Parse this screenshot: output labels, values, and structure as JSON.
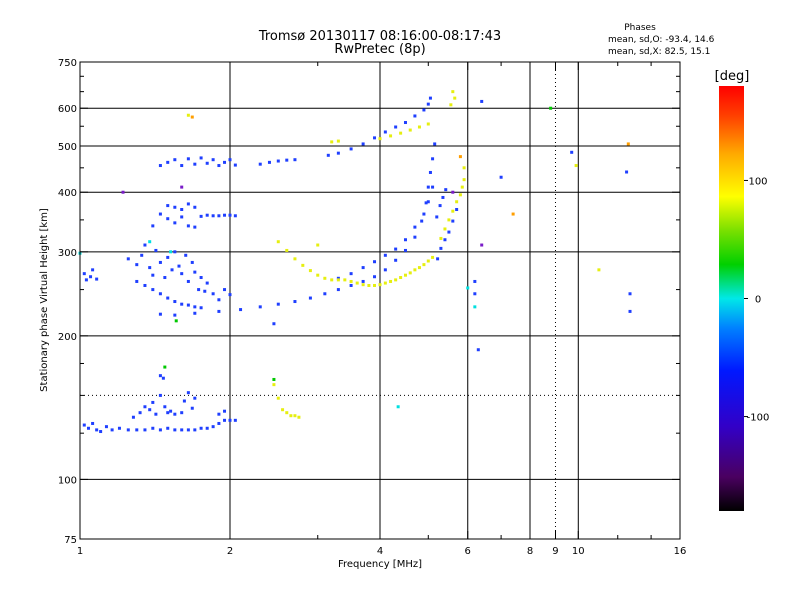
{
  "title": "Tromsø 20130117 08:16:00-08:17:43",
  "subtitle": "RwPretec (8p)",
  "stats": {
    "heading": "Phases",
    "line1": "mean, sd,O: -93.4, 14.6",
    "line2": "mean, sd,X: 82.5, 15.1"
  },
  "colors": {
    "blue": "#1f3fff",
    "yellow": "#e6ef10",
    "cyan": "#00e0e0",
    "green": "#00c800",
    "orange": "#ff9e00",
    "purple": "#7a1cc8"
  },
  "chart_data": {
    "type": "scatter",
    "xlabel": "Frequency [MHz]",
    "ylabel": "Stationary phase Virtual Height [km]",
    "x_scale": "log",
    "y_scale": "log",
    "xlim": [
      1,
      16
    ],
    "ylim": [
      75,
      750
    ],
    "x_ticks": [
      1,
      2,
      4,
      6,
      8,
      9,
      10,
      16
    ],
    "x_tick_labels": [
      "1",
      "2",
      "4",
      "6",
      "8",
      "9",
      "10",
      "16"
    ],
    "x_minor_ticks": [
      3,
      5,
      7,
      12,
      14
    ],
    "x_grid": [
      2,
      4,
      6,
      8,
      10
    ],
    "x_grid_dotted": [
      9
    ],
    "y_ticks": [
      75,
      100,
      200,
      300,
      400,
      500,
      600,
      750
    ],
    "y_tick_labels": [
      "75",
      "100",
      "200",
      "300",
      "400",
      "500",
      "600",
      "750"
    ],
    "y_minor_ticks": [
      125,
      150,
      175,
      250,
      350,
      450,
      550,
      650,
      700
    ],
    "y_grid": [
      100,
      200,
      300,
      400,
      500,
      600
    ],
    "y_grid_dotted": [
      150
    ],
    "grid": true,
    "colorbar": {
      "label": "[deg]",
      "min": -180,
      "max": 180,
      "ticks": [
        100,
        0,
        -100
      ],
      "tick_labels": [
        "100",
        "0",
        "-100"
      ]
    },
    "series": [
      {
        "color": "blue",
        "points": [
          [
            1.02,
            130
          ],
          [
            1.04,
            128
          ],
          [
            1.06,
            131
          ],
          [
            1.08,
            127
          ],
          [
            1.1,
            126
          ],
          [
            1.13,
            129
          ],
          [
            1.16,
            127
          ],
          [
            1.2,
            128
          ],
          [
            1.25,
            127
          ],
          [
            1.3,
            127
          ],
          [
            1.35,
            127
          ],
          [
            1.4,
            128
          ],
          [
            1.45,
            127
          ],
          [
            1.5,
            128
          ],
          [
            1.55,
            127
          ],
          [
            1.6,
            127
          ],
          [
            1.65,
            127
          ],
          [
            1.7,
            127
          ],
          [
            1.75,
            128
          ],
          [
            1.8,
            128
          ],
          [
            1.85,
            129
          ],
          [
            1.9,
            131
          ],
          [
            1.95,
            133
          ],
          [
            2.0,
            133
          ],
          [
            2.05,
            133
          ],
          [
            1.28,
            135
          ],
          [
            1.32,
            138
          ],
          [
            1.35,
            142
          ],
          [
            1.38,
            140
          ],
          [
            1.4,
            145
          ],
          [
            1.42,
            137
          ],
          [
            1.45,
            150
          ],
          [
            1.48,
            142
          ],
          [
            1.5,
            138
          ],
          [
            1.52,
            139
          ],
          [
            1.55,
            137
          ],
          [
            1.6,
            138
          ],
          [
            1.62,
            146
          ],
          [
            1.65,
            152
          ],
          [
            1.68,
            141
          ],
          [
            1.7,
            148
          ],
          [
            1.45,
            165
          ],
          [
            1.47,
            163
          ],
          [
            1.9,
            137
          ],
          [
            1.95,
            139
          ],
          [
            1.03,
            262
          ],
          [
            1.05,
            266
          ],
          [
            1.08,
            263
          ],
          [
            1.02,
            270
          ],
          [
            1.06,
            275
          ],
          [
            1.25,
            290
          ],
          [
            1.3,
            282
          ],
          [
            1.33,
            295
          ],
          [
            1.35,
            310
          ],
          [
            1.38,
            278
          ],
          [
            1.4,
            268
          ],
          [
            1.42,
            302
          ],
          [
            1.45,
            285
          ],
          [
            1.48,
            265
          ],
          [
            1.5,
            292
          ],
          [
            1.53,
            275
          ],
          [
            1.55,
            300
          ],
          [
            1.58,
            280
          ],
          [
            1.6,
            270
          ],
          [
            1.63,
            295
          ],
          [
            1.65,
            260
          ],
          [
            1.68,
            285
          ],
          [
            1.7,
            272
          ],
          [
            1.73,
            250
          ],
          [
            1.75,
            265
          ],
          [
            1.78,
            248
          ],
          [
            1.8,
            258
          ],
          [
            1.85,
            245
          ],
          [
            1.9,
            238
          ],
          [
            1.95,
            250
          ],
          [
            2.0,
            244
          ],
          [
            1.3,
            260
          ],
          [
            1.35,
            255
          ],
          [
            1.4,
            250
          ],
          [
            1.45,
            245
          ],
          [
            1.5,
            240
          ],
          [
            1.55,
            236
          ],
          [
            1.6,
            233
          ],
          [
            1.65,
            232
          ],
          [
            1.7,
            230
          ],
          [
            1.75,
            229
          ],
          [
            1.4,
            340
          ],
          [
            1.45,
            360
          ],
          [
            1.5,
            352
          ],
          [
            1.55,
            345
          ],
          [
            1.6,
            355
          ],
          [
            1.65,
            340
          ],
          [
            1.7,
            338
          ],
          [
            1.75,
            356
          ],
          [
            1.8,
            358
          ],
          [
            1.85,
            357
          ],
          [
            1.9,
            357
          ],
          [
            1.95,
            358
          ],
          [
            2.0,
            358
          ],
          [
            2.05,
            357
          ],
          [
            1.5,
            375
          ],
          [
            1.55,
            372
          ],
          [
            1.6,
            368
          ],
          [
            1.65,
            378
          ],
          [
            1.7,
            372
          ],
          [
            1.45,
            455
          ],
          [
            1.5,
            462
          ],
          [
            1.55,
            468
          ],
          [
            1.6,
            455
          ],
          [
            1.65,
            470
          ],
          [
            1.7,
            458
          ],
          [
            1.75,
            472
          ],
          [
            1.8,
            460
          ],
          [
            1.85,
            468
          ],
          [
            1.9,
            455
          ],
          [
            1.95,
            462
          ],
          [
            2.0,
            468
          ],
          [
            2.05,
            456
          ],
          [
            2.3,
            458
          ],
          [
            2.4,
            462
          ],
          [
            2.5,
            465
          ],
          [
            2.6,
            467
          ],
          [
            2.7,
            468
          ],
          [
            3.15,
            478
          ],
          [
            3.3,
            483
          ],
          [
            3.5,
            493
          ],
          [
            3.7,
            505
          ],
          [
            3.9,
            520
          ],
          [
            4.1,
            535
          ],
          [
            4.3,
            548
          ],
          [
            4.5,
            560
          ],
          [
            4.7,
            578
          ],
          [
            4.9,
            595
          ],
          [
            5.0,
            612
          ],
          [
            5.05,
            630
          ],
          [
            1.45,
            222
          ],
          [
            1.55,
            221
          ],
          [
            1.7,
            223
          ],
          [
            1.9,
            225
          ],
          [
            2.1,
            227
          ],
          [
            2.3,
            230
          ],
          [
            2.5,
            233
          ],
          [
            2.7,
            236
          ],
          [
            2.9,
            240
          ],
          [
            3.1,
            245
          ],
          [
            3.3,
            250
          ],
          [
            3.5,
            255
          ],
          [
            3.7,
            260
          ],
          [
            3.9,
            266
          ],
          [
            4.1,
            275
          ],
          [
            4.3,
            288
          ],
          [
            4.5,
            302
          ],
          [
            4.7,
            322
          ],
          [
            4.85,
            348
          ],
          [
            4.95,
            380
          ],
          [
            5.0,
            410
          ],
          [
            5.05,
            440
          ],
          [
            5.1,
            470
          ],
          [
            5.15,
            505
          ],
          [
            3.3,
            264
          ],
          [
            3.5,
            270
          ],
          [
            3.7,
            278
          ],
          [
            3.9,
            286
          ],
          [
            4.1,
            295
          ],
          [
            4.3,
            304
          ],
          [
            4.5,
            318
          ],
          [
            4.7,
            338
          ],
          [
            4.9,
            360
          ],
          [
            5.0,
            382
          ],
          [
            5.1,
            410
          ],
          [
            5.22,
            290
          ],
          [
            5.3,
            305
          ],
          [
            5.4,
            318
          ],
          [
            5.5,
            330
          ],
          [
            5.6,
            348
          ],
          [
            5.7,
            368
          ],
          [
            5.2,
            355
          ],
          [
            5.28,
            375
          ],
          [
            5.35,
            390
          ],
          [
            5.42,
            405
          ],
          [
            2.45,
            212
          ],
          [
            6.3,
            187
          ],
          [
            6.2,
            245
          ],
          [
            6.2,
            260
          ],
          [
            12.5,
            441
          ],
          [
            9.7,
            485
          ],
          [
            12.7,
            245
          ],
          [
            12.7,
            225
          ],
          [
            7.0,
            430
          ],
          [
            6.4,
            620
          ]
        ]
      },
      {
        "color": "yellow",
        "points": [
          [
            2.45,
            158
          ],
          [
            2.5,
            148
          ],
          [
            2.55,
            140
          ],
          [
            2.6,
            138
          ],
          [
            2.65,
            136
          ],
          [
            2.7,
            136
          ],
          [
            2.75,
            135
          ],
          [
            2.5,
            315
          ],
          [
            2.6,
            302
          ],
          [
            2.7,
            290
          ],
          [
            2.8,
            281
          ],
          [
            2.9,
            274
          ],
          [
            3.0,
            268
          ],
          [
            3.1,
            264
          ],
          [
            3.2,
            262
          ],
          [
            3.3,
            262
          ],
          [
            3.4,
            262
          ],
          [
            3.5,
            260
          ],
          [
            3.6,
            258
          ],
          [
            3.7,
            256
          ],
          [
            3.8,
            255
          ],
          [
            3.9,
            255
          ],
          [
            4.0,
            256
          ],
          [
            4.1,
            258
          ],
          [
            4.2,
            260
          ],
          [
            4.3,
            262
          ],
          [
            4.4,
            265
          ],
          [
            4.5,
            268
          ],
          [
            4.6,
            271
          ],
          [
            4.7,
            275
          ],
          [
            4.8,
            278
          ],
          [
            4.9,
            282
          ],
          [
            5.0,
            287
          ],
          [
            5.1,
            292
          ],
          [
            3.2,
            510
          ],
          [
            3.3,
            512
          ],
          [
            4.0,
            518
          ],
          [
            4.2,
            525
          ],
          [
            4.4,
            532
          ],
          [
            4.6,
            540
          ],
          [
            4.8,
            548
          ],
          [
            5.0,
            556
          ],
          [
            5.3,
            320
          ],
          [
            5.4,
            335
          ],
          [
            5.5,
            350
          ],
          [
            5.6,
            365
          ],
          [
            5.7,
            382
          ],
          [
            5.8,
            395
          ],
          [
            5.85,
            410
          ],
          [
            5.9,
            425
          ],
          [
            5.9,
            450
          ],
          [
            5.6,
            650
          ],
          [
            5.65,
            630
          ],
          [
            5.55,
            610
          ],
          [
            1.65,
            580
          ],
          [
            11.0,
            275
          ],
          [
            9.9,
            455
          ],
          [
            3.0,
            310
          ]
        ]
      },
      {
        "color": "cyan",
        "points": [
          [
            1.0,
            298
          ],
          [
            1.38,
            315
          ],
          [
            1.52,
            300
          ],
          [
            4.35,
            142
          ],
          [
            6.2,
            230
          ],
          [
            6.0,
            252
          ]
        ]
      },
      {
        "color": "green",
        "points": [
          [
            1.48,
            172
          ],
          [
            2.45,
            162
          ],
          [
            8.8,
            600
          ],
          [
            1.56,
            215
          ]
        ]
      },
      {
        "color": "orange",
        "points": [
          [
            12.6,
            505
          ],
          [
            7.4,
            360
          ],
          [
            1.68,
            575
          ],
          [
            5.8,
            475
          ]
        ]
      },
      {
        "color": "purple",
        "points": [
          [
            1.22,
            400
          ],
          [
            1.6,
            410
          ],
          [
            5.6,
            400
          ],
          [
            6.4,
            310
          ]
        ]
      }
    ]
  }
}
